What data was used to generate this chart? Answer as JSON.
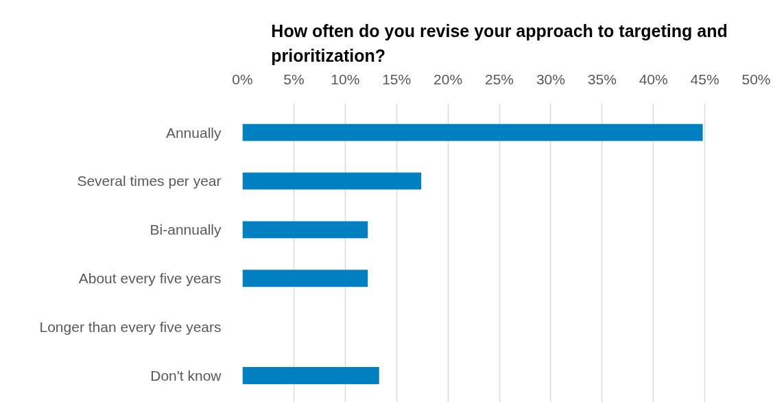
{
  "chart_data": {
    "type": "bar",
    "orientation": "horizontal",
    "title": "How often do you revise your approach to targeting and prioritization?",
    "categories": [
      "Annually",
      "Several times per year",
      "Bi-annually",
      "About every five years",
      "Longer than every five years",
      "Don't know"
    ],
    "values": [
      44.8,
      17.4,
      12.2,
      12.2,
      0,
      13.3
    ],
    "color": "#0080c0",
    "xlim": [
      0,
      50
    ],
    "xticks": [
      {
        "value": 0,
        "label": "0%"
      },
      {
        "value": 5,
        "label": "5%"
      },
      {
        "value": 10,
        "label": "10%"
      },
      {
        "value": 15,
        "label": "15%"
      },
      {
        "value": 20,
        "label": "20%"
      },
      {
        "value": 25,
        "label": "25%"
      },
      {
        "value": 30,
        "label": "30%"
      },
      {
        "value": 35,
        "label": "35%"
      },
      {
        "value": 40,
        "label": "40%"
      },
      {
        "value": 45,
        "label": "45%"
      },
      {
        "value": 50,
        "label": "50%"
      }
    ],
    "grid": "x"
  }
}
